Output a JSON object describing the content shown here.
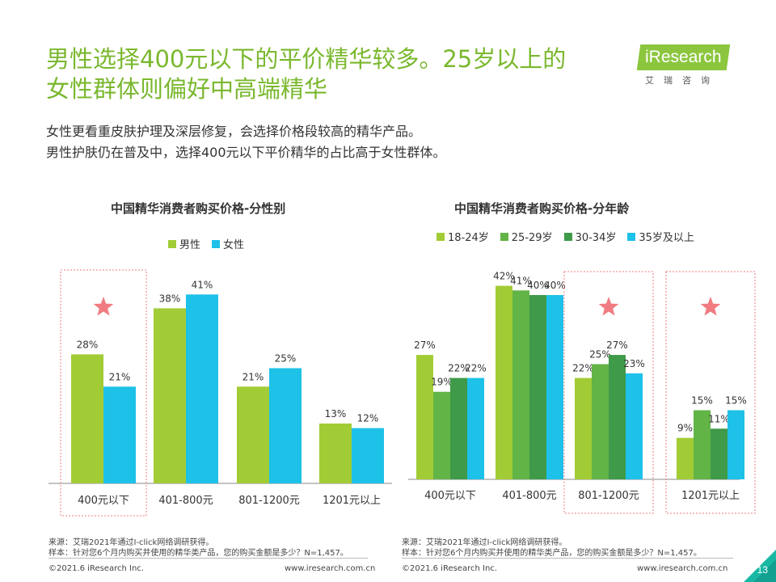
{
  "header": {
    "title_line1": "男性选择400元以下的平价精华较多。25岁以上的",
    "title_line2": "女性群体则偏好中高端精华"
  },
  "logo": {
    "main": "iResearch",
    "sub": "艾瑞咨询"
  },
  "description": {
    "line1": "女性更看重皮肤护理及深层修复，会选择价格段较高的精华产品。",
    "line2": "男性护肤仍在普及中，选择400元以下平价精华的占比高于女性群体。"
  },
  "colors": {
    "title_green": "#7ab82e",
    "lime": "#a2cc35",
    "green": "#62b446",
    "dark_green": "#3f9a49",
    "cyan": "#1ec1e8",
    "highlight": "#f07c82"
  },
  "chart_data": [
    {
      "type": "bar",
      "title": "中国精华消费者购买价格-分性别",
      "categories": [
        "400元以下",
        "401-800元",
        "801-1200元",
        "1201元以上"
      ],
      "series": [
        {
          "name": "男性",
          "values": [
            28,
            38,
            21,
            13
          ],
          "labels": [
            "28%",
            "38%",
            "21%",
            "13%"
          ],
          "color": "#a2cc35"
        },
        {
          "name": "女性",
          "values": [
            21,
            41,
            25,
            12
          ],
          "labels": [
            "21%",
            "41%",
            "25%",
            "12%"
          ],
          "color": "#1ec1e8"
        }
      ],
      "highlight_categories": [
        0
      ],
      "ylim": [
        0,
        45
      ],
      "legend": "top"
    },
    {
      "type": "bar",
      "title": "中国精华消费者购买价格-分年龄",
      "categories": [
        "400元以下",
        "401-800元",
        "801-1200元",
        "1201元以上"
      ],
      "series": [
        {
          "name": "18-24岁",
          "values": [
            27,
            42,
            22,
            9
          ],
          "labels": [
            "27%",
            "42%",
            "22%",
            "9%"
          ],
          "color": "#a2cc35"
        },
        {
          "name": "25-29岁",
          "values": [
            19,
            41,
            25,
            15
          ],
          "labels": [
            "19%",
            "41%",
            "25%",
            "15%"
          ],
          "color": "#62b446"
        },
        {
          "name": "30-34岁",
          "values": [
            22,
            40,
            27,
            11
          ],
          "labels": [
            "22%",
            "40%",
            "27%",
            "11%"
          ],
          "color": "#3f9a49"
        },
        {
          "name": "35岁及以上",
          "values": [
            22,
            40,
            23,
            15
          ],
          "labels": [
            "22%",
            "40%",
            "23%",
            "15%"
          ],
          "color": "#1ec1e8"
        }
      ],
      "highlight_categories": [
        2,
        3
      ],
      "ylim": [
        0,
        45
      ],
      "legend": "top"
    }
  ],
  "footer": {
    "source": "来源：艾瑞2021年通过I-click网络调研获得。",
    "sample": "样本：针对您6个月内购买并使用的精华类产品，您的购买金额是多少？N=1,457。",
    "copyright": "©2021.6 iResearch Inc.",
    "website": "www.iresearch.com.cn",
    "page": "13"
  }
}
